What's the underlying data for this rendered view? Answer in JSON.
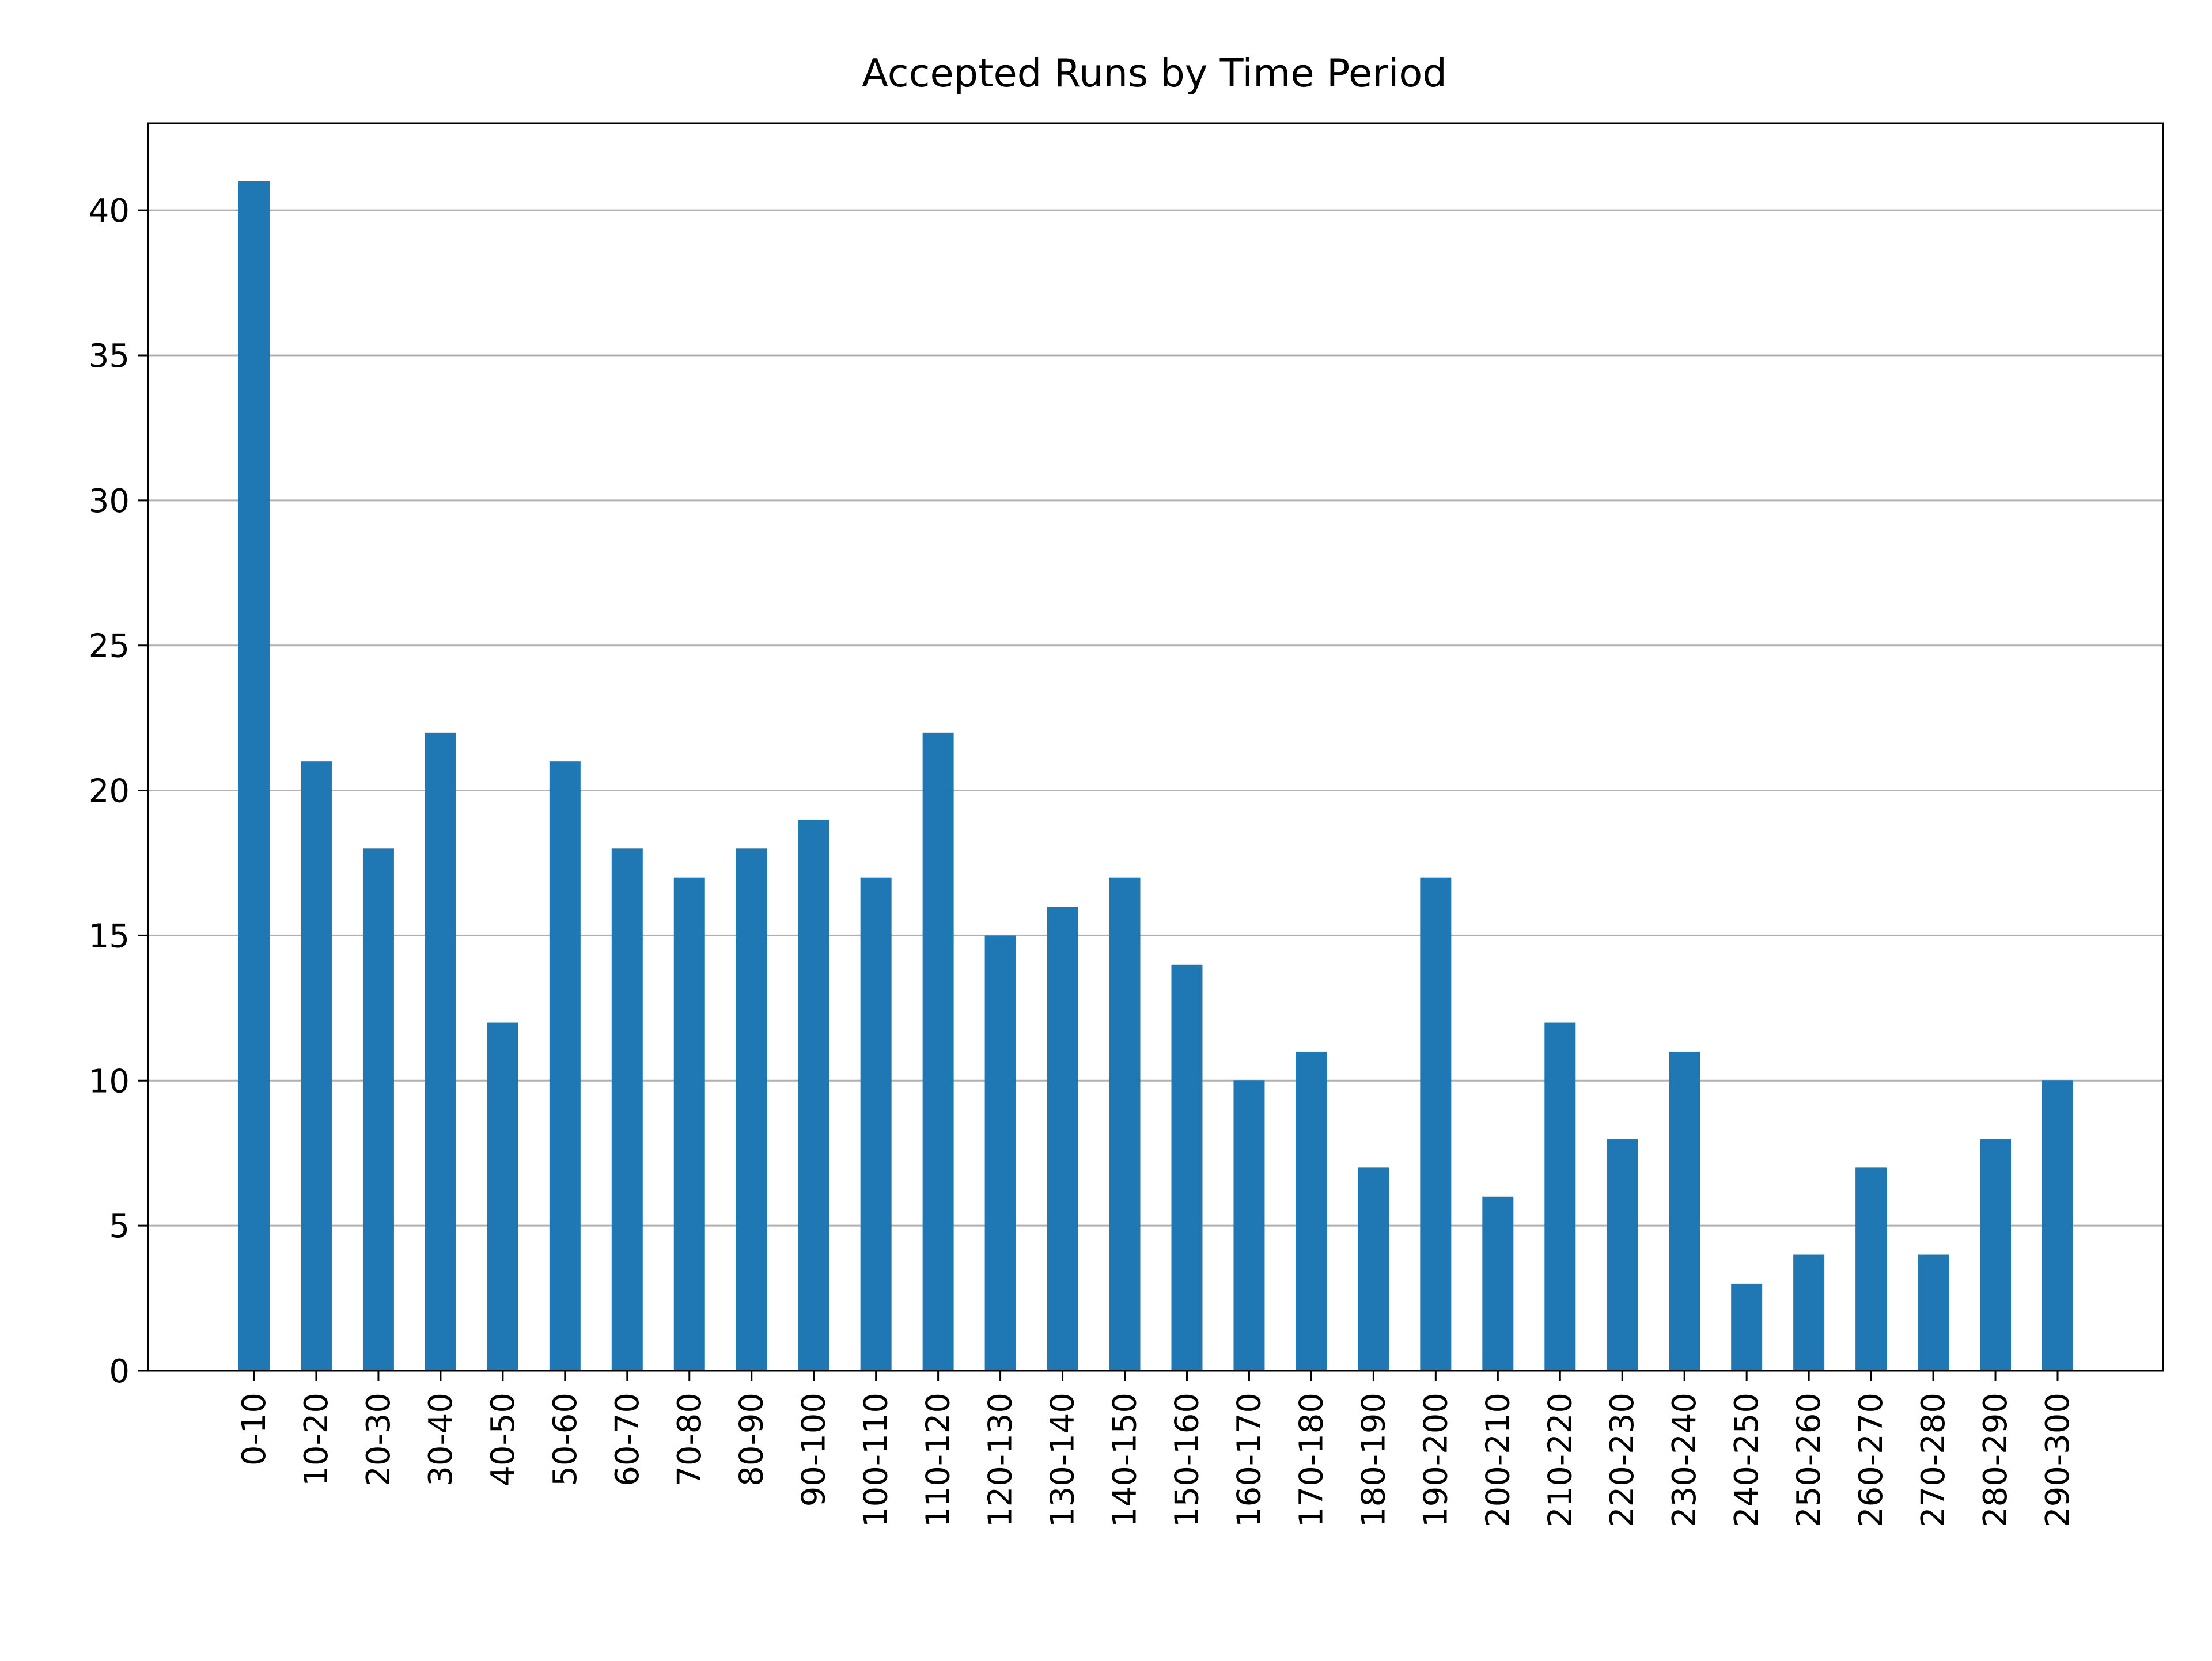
{
  "chart_data": {
    "type": "bar",
    "title": "Accepted Runs by Time Period",
    "xlabel": "",
    "ylabel": "",
    "categories": [
      "0-10",
      "10-20",
      "20-30",
      "30-40",
      "40-50",
      "50-60",
      "60-70",
      "70-80",
      "80-90",
      "90-100",
      "100-110",
      "110-120",
      "120-130",
      "130-140",
      "140-150",
      "150-160",
      "160-170",
      "170-180",
      "180-190",
      "190-200",
      "200-210",
      "210-220",
      "220-230",
      "230-240",
      "240-250",
      "250-260",
      "260-270",
      "270-280",
      "280-290",
      "290-300"
    ],
    "values": [
      41,
      21,
      18,
      22,
      12,
      21,
      18,
      17,
      18,
      19,
      17,
      22,
      15,
      16,
      17,
      14,
      10,
      11,
      7,
      17,
      6,
      12,
      8,
      11,
      3,
      4,
      7,
      4,
      8,
      10
    ],
    "ylim": [
      0,
      43
    ],
    "yticks": [
      0,
      5,
      10,
      15,
      20,
      25,
      30,
      35,
      40
    ],
    "grid": "y",
    "legend": "none",
    "bar_color": "#1f77b4",
    "grid_color": "#b0b0b0"
  }
}
